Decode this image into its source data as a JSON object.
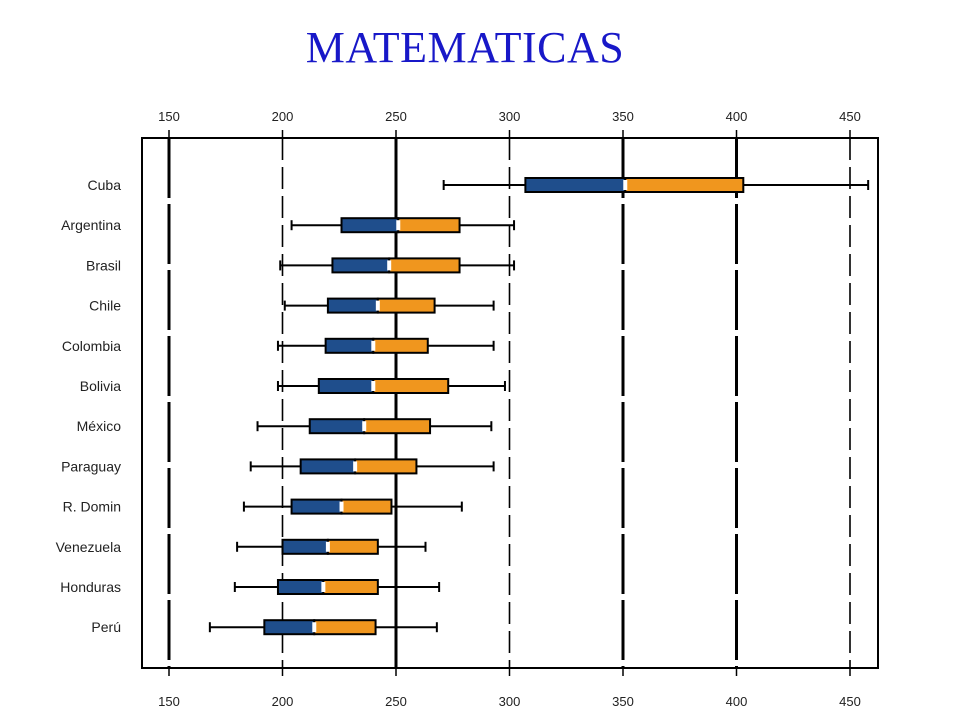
{
  "title": "MATEMATICAS",
  "colors": {
    "title": "#1818c8",
    "lower_box": "#1f4e8c",
    "upper_box": "#f0961e",
    "median": "#ffffff",
    "line": "#000000"
  },
  "chart_data": {
    "type": "boxplot",
    "title": "MATEMATICAS",
    "xlabel": "",
    "ylabel": "",
    "xlim": [
      143,
      463
    ],
    "ticks": [
      150,
      200,
      250,
      300,
      350,
      400,
      450
    ],
    "tick_labels": [
      "150",
      "200",
      "250",
      "300",
      "350",
      "400",
      "450"
    ],
    "axis_ticks_top_and_bottom": true,
    "grid": "vertical dashed lines at every tick; solid at 150, 250, 350, 400",
    "categories": [
      "Cuba",
      "Argentina",
      "Brasil",
      "Chile",
      "Colombia",
      "Bolivia",
      "México",
      "Paraguay",
      "R. Domin",
      "Venezuela",
      "Honduras",
      "Perú"
    ],
    "series": [
      {
        "category": "Cuba",
        "whisker_low": 271,
        "q1": 307,
        "median": 351,
        "q3": 403,
        "whisker_high": 458
      },
      {
        "category": "Argentina",
        "whisker_low": 204,
        "q1": 226,
        "median": 251,
        "q3": 278,
        "whisker_high": 302
      },
      {
        "category": "Brasil",
        "whisker_low": 199,
        "q1": 222,
        "median": 247,
        "q3": 278,
        "whisker_high": 302
      },
      {
        "category": "Chile",
        "whisker_low": 201,
        "q1": 220,
        "median": 242,
        "q3": 267,
        "whisker_high": 293
      },
      {
        "category": "Colombia",
        "whisker_low": 198,
        "q1": 219,
        "median": 240,
        "q3": 264,
        "whisker_high": 293
      },
      {
        "category": "Bolivia",
        "whisker_low": 198,
        "q1": 216,
        "median": 240,
        "q3": 273,
        "whisker_high": 298
      },
      {
        "category": "México",
        "whisker_low": 189,
        "q1": 212,
        "median": 236,
        "q3": 265,
        "whisker_high": 292
      },
      {
        "category": "Paraguay",
        "whisker_low": 186,
        "q1": 208,
        "median": 232,
        "q3": 259,
        "whisker_high": 293
      },
      {
        "category": "R. Domin",
        "whisker_low": 183,
        "q1": 204,
        "median": 226,
        "q3": 248,
        "whisker_high": 279
      },
      {
        "category": "Venezuela",
        "whisker_low": 180,
        "q1": 200,
        "median": 220,
        "q3": 242,
        "whisker_high": 263
      },
      {
        "category": "Honduras",
        "whisker_low": 179,
        "q1": 198,
        "median": 218,
        "q3": 242,
        "whisker_high": 269
      },
      {
        "category": "Perú",
        "whisker_low": 168,
        "q1": 192,
        "median": 214,
        "q3": 241,
        "whisker_high": 268
      }
    ]
  }
}
